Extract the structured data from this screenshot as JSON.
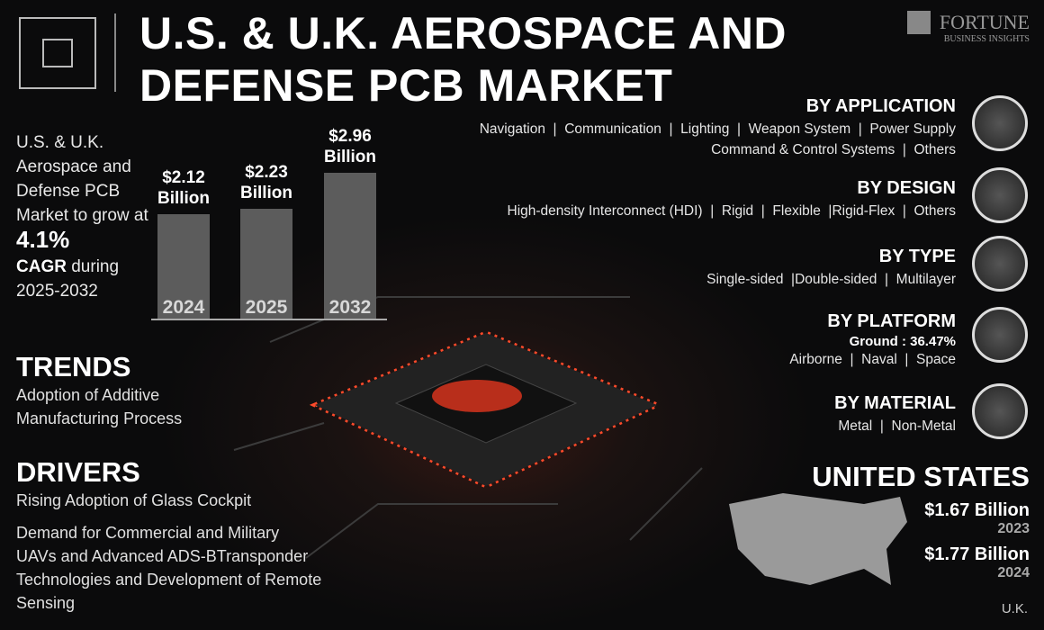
{
  "header": {
    "title": "U.S. & U.K. AEROSPACE AND DEFENSE PCB MARKET",
    "logo": "FORTUNE",
    "logo_sub": "BUSINESS INSIGHTS"
  },
  "intro": {
    "text": "U.S. & U.K. Aerospace and Defense PCB Market to grow at",
    "cagr": "4.1%",
    "cagr_label": "CAGR",
    "period": "during 2025-2032"
  },
  "chart_data": {
    "type": "bar",
    "categories": [
      "2024",
      "2025",
      "2032"
    ],
    "values": [
      2.12,
      2.23,
      2.96
    ],
    "value_labels": [
      "$2.12 Billion",
      "$2.23 Billion",
      "$2.96 Billion"
    ],
    "color": "#5c5c5c"
  },
  "trends": {
    "title": "TRENDS",
    "items": [
      "Adoption of Additive Manufacturing Process"
    ]
  },
  "drivers": {
    "title": "DRIVERS",
    "items": [
      "Rising Adoption of Glass Cockpit",
      "Demand for Commercial and Military UAVs and Advanced ADS-BTransponder Technologies and Development of Remote Sensing"
    ]
  },
  "segments": [
    {
      "title": "BY APPLICATION",
      "lines": [
        "Navigation  |  Communication  |  Lighting  |  Weapon System  |  Power Supply",
        "Command & Control Systems  |  Others"
      ]
    },
    {
      "title": "BY DESIGN",
      "lines": [
        "High-density Interconnect (HDI)  |  Rigid  |  Flexible  |Rigid-Flex  |  Others"
      ]
    },
    {
      "title": "BY TYPE",
      "lines": [
        "Single-sided  |Double-sided  |  Multilayer"
      ]
    },
    {
      "title": "BY PLATFORM",
      "highlight": "Ground : 36.47%",
      "lines": [
        "Airborne  |  Naval  |  Space"
      ]
    },
    {
      "title": "BY MATERIAL",
      "lines": [
        "Metal  |  Non-Metal"
      ]
    }
  ],
  "region": {
    "name": "UNITED STATES",
    "stats": [
      {
        "value": "$1.67 Billion",
        "year": "2023"
      },
      {
        "value": "$1.77 Billion",
        "year": "2024"
      }
    ],
    "footer": "U.K."
  }
}
